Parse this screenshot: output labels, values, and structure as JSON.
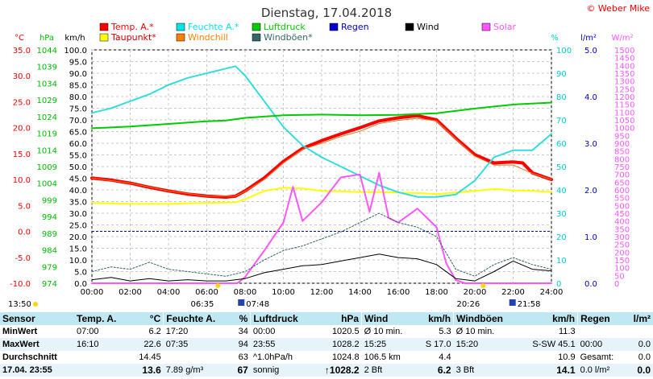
{
  "chart_data": {
    "type": "line",
    "title": "Dienstag, 17.04.2018",
    "copyright": "© Weber Mike",
    "x_ticks": [
      "00:00",
      "02:00",
      "04:00",
      "06:00",
      "08:00",
      "10:00",
      "12:00",
      "14:00",
      "16:00",
      "18:00",
      "20:00",
      "22:00",
      "24:00"
    ],
    "x_range_hours": [
      0,
      24
    ],
    "axes": {
      "temp": {
        "unit": "°C",
        "range": [
          -10,
          35
        ],
        "ticks": [
          "35.0",
          "30.0",
          "25.0",
          "20.0",
          "15.0",
          "10.0",
          "5.0",
          "0.0",
          "-5.0",
          "-10.0"
        ],
        "color": "#ff0000"
      },
      "pressure": {
        "unit": "hPa",
        "range": [
          974,
          1044
        ],
        "ticks": [
          "1044",
          "1039",
          "1034",
          "1029",
          "1024",
          "1019",
          "1014",
          "1009",
          "1004",
          "999",
          "994",
          "989",
          "984",
          "979",
          "974"
        ],
        "color": "#00bb00"
      },
      "wind": {
        "unit": "km/h",
        "range": [
          0,
          100
        ],
        "ticks": [
          "100.0",
          "95.0",
          "90.0",
          "85.0",
          "80.0",
          "75.0",
          "70.0",
          "65.0",
          "60.0",
          "55.0",
          "50.0",
          "45.0",
          "40.0",
          "35.0",
          "30.0",
          "25.0",
          "20.0",
          "15.0",
          "10.0",
          "5.0",
          "0.0"
        ],
        "color": "#000000"
      },
      "humidity": {
        "unit": "%",
        "range": [
          0,
          100
        ],
        "ticks": [
          "100",
          "90",
          "80",
          "70",
          "60",
          "50",
          "40",
          "30",
          "20",
          "10",
          "0"
        ],
        "color": "#00cccc"
      },
      "rain": {
        "unit": "l/m²",
        "range": [
          0,
          5
        ],
        "ticks": [
          "5.0",
          "4.0",
          "3.0",
          "2.0",
          "1.0",
          "0.0"
        ],
        "color": "#0000cc"
      },
      "solar": {
        "unit": "W/m²",
        "range": [
          0,
          1500
        ],
        "ticks": [
          "1500",
          "1450",
          "1400",
          "1350",
          "1300",
          "1250",
          "1200",
          "1150",
          "1100",
          "1050",
          "1000",
          "950",
          "900",
          "850",
          "800",
          "750",
          "700",
          "650",
          "600",
          "550",
          "500",
          "450",
          "400",
          "350",
          "300",
          "250",
          "200",
          "150",
          "100",
          "50",
          "0"
        ],
        "color": "#ff55ff"
      }
    },
    "legend": [
      {
        "label": "Temp. A.*",
        "color": "#ff0000"
      },
      {
        "label": "Feuchte A.*",
        "color": "#00e5e5"
      },
      {
        "label": "Luftdruck",
        "color": "#00cc00"
      },
      {
        "label": "Regen",
        "color": "#0000cc"
      },
      {
        "label": "Wind",
        "color": "#000000"
      },
      {
        "label": "Solar",
        "color": "#ff55ff"
      },
      {
        "label": "Taupunkt*",
        "color": "#ffff00"
      },
      {
        "label": "Windchill",
        "color": "#ff8000"
      },
      {
        "label": "Windböen*",
        "color": "#336666"
      }
    ],
    "series": [
      {
        "name": "Temp. A.*",
        "axis": "temp",
        "color": "#ff0000",
        "width": 4,
        "points": [
          [
            0,
            10.3
          ],
          [
            1,
            9.9
          ],
          [
            2,
            9.3
          ],
          [
            3,
            8.5
          ],
          [
            4,
            7.8
          ],
          [
            5,
            7.2
          ],
          [
            6,
            6.8
          ],
          [
            7,
            6.6
          ],
          [
            7.5,
            6.8
          ],
          [
            8,
            7.8
          ],
          [
            9,
            10.3
          ],
          [
            10,
            13.5
          ],
          [
            11,
            16.0
          ],
          [
            12,
            17.5
          ],
          [
            13,
            18.8
          ],
          [
            14,
            20.0
          ],
          [
            15,
            21.3
          ],
          [
            16,
            21.9
          ],
          [
            17,
            22.3
          ],
          [
            18,
            21.5
          ],
          [
            19,
            18.0
          ],
          [
            20,
            14.8
          ],
          [
            21,
            13.2
          ],
          [
            22,
            13.4
          ],
          [
            22.5,
            13.2
          ],
          [
            23,
            11.3
          ],
          [
            24,
            10.0
          ]
        ]
      },
      {
        "name": "Windchill",
        "axis": "temp",
        "color": "#e07820",
        "width": 1,
        "points": [
          [
            0,
            10.3
          ],
          [
            2,
            9.3
          ],
          [
            4,
            7.8
          ],
          [
            6,
            6.8
          ],
          [
            7.5,
            6.8
          ],
          [
            8,
            7.7
          ],
          [
            9,
            10.0
          ],
          [
            10,
            13.2
          ],
          [
            11,
            15.8
          ],
          [
            12,
            17.0
          ],
          [
            13,
            18.3
          ],
          [
            14,
            19.3
          ],
          [
            15,
            20.8
          ],
          [
            16,
            21.4
          ],
          [
            17,
            21.8
          ],
          [
            18,
            21.3
          ],
          [
            19,
            17.8
          ],
          [
            20,
            14.5
          ],
          [
            21,
            12.8
          ],
          [
            22,
            12.8
          ],
          [
            23,
            11.2
          ],
          [
            24,
            10.0
          ]
        ]
      },
      {
        "name": "Taupunkt*",
        "axis": "temp",
        "color": "#ffff00",
        "width": 2,
        "points": [
          [
            0,
            5.5
          ],
          [
            2,
            5.3
          ],
          [
            4,
            5.3
          ],
          [
            6,
            5.5
          ],
          [
            7.5,
            5.6
          ],
          [
            8,
            6.2
          ],
          [
            9,
            7.8
          ],
          [
            10,
            8.4
          ],
          [
            11,
            8.3
          ],
          [
            12,
            7.8
          ],
          [
            13,
            7.7
          ],
          [
            14,
            7.6
          ],
          [
            15,
            7.6
          ],
          [
            16,
            7.5
          ],
          [
            17,
            7.4
          ],
          [
            18,
            7.2
          ],
          [
            19,
            7.5
          ],
          [
            20,
            7.8
          ],
          [
            21,
            8.2
          ],
          [
            22,
            7.9
          ],
          [
            23,
            7.8
          ],
          [
            24,
            7.6
          ]
        ]
      },
      {
        "name": "Feuchte A.*",
        "axis": "humidity",
        "color": "#33dddd",
        "width": 2,
        "points": [
          [
            0,
            73
          ],
          [
            1,
            75
          ],
          [
            2,
            78
          ],
          [
            3,
            81
          ],
          [
            4,
            85
          ],
          [
            5,
            88
          ],
          [
            6,
            90
          ],
          [
            7,
            92
          ],
          [
            7.5,
            93
          ],
          [
            8,
            89
          ],
          [
            9,
            78
          ],
          [
            10,
            67
          ],
          [
            11,
            59
          ],
          [
            12,
            54
          ],
          [
            13,
            50
          ],
          [
            14,
            46
          ],
          [
            15,
            42
          ],
          [
            16,
            39
          ],
          [
            17,
            37
          ],
          [
            18,
            37
          ],
          [
            19,
            38
          ],
          [
            20,
            44
          ],
          [
            21,
            54
          ],
          [
            22,
            57
          ],
          [
            23,
            57
          ],
          [
            24,
            64
          ]
        ]
      },
      {
        "name": "Luftdruck",
        "axis": "pressure",
        "color": "#00cc00",
        "width": 2,
        "points": [
          [
            0,
            1020.5
          ],
          [
            2,
            1021.0
          ],
          [
            4,
            1021.8
          ],
          [
            6,
            1022.6
          ],
          [
            7,
            1022.8
          ],
          [
            8,
            1023.6
          ],
          [
            10,
            1024.4
          ],
          [
            12,
            1024.6
          ],
          [
            14,
            1024.4
          ],
          [
            16,
            1024.5
          ],
          [
            18,
            1025.0
          ],
          [
            20,
            1026.4
          ],
          [
            22,
            1027.6
          ],
          [
            24,
            1028.2
          ]
        ]
      },
      {
        "name": "Solar",
        "axis": "solar",
        "color": "#ff55ff",
        "width": 2,
        "points": [
          [
            0,
            0
          ],
          [
            7.6,
            0
          ],
          [
            8,
            40
          ],
          [
            9,
            210
          ],
          [
            10,
            390
          ],
          [
            10.5,
            620
          ],
          [
            11,
            400
          ],
          [
            12,
            520
          ],
          [
            13,
            680
          ],
          [
            14,
            700
          ],
          [
            14.5,
            460
          ],
          [
            15,
            710
          ],
          [
            15.5,
            420
          ],
          [
            16,
            390
          ],
          [
            17,
            480
          ],
          [
            18,
            360
          ],
          [
            18.5,
            130
          ],
          [
            19,
            20
          ],
          [
            19.5,
            0
          ],
          [
            24,
            0
          ]
        ]
      },
      {
        "name": "Wind",
        "axis": "wind",
        "color": "#000000",
        "width": 1,
        "points": [
          [
            0,
            1.5
          ],
          [
            1,
            2.5
          ],
          [
            2,
            1.0
          ],
          [
            3,
            2.0
          ],
          [
            4,
            1.0
          ],
          [
            5,
            1.5
          ],
          [
            6,
            1.0
          ],
          [
            7,
            1.0
          ],
          [
            8,
            2.0
          ],
          [
            9,
            4.5
          ],
          [
            10,
            6.0
          ],
          [
            11,
            7.5
          ],
          [
            12,
            8.0
          ],
          [
            13,
            9.5
          ],
          [
            14,
            11.0
          ],
          [
            15,
            12.5
          ],
          [
            16,
            11.0
          ],
          [
            17,
            10.5
          ],
          [
            18,
            8.0
          ],
          [
            19,
            2.0
          ],
          [
            20,
            1.0
          ],
          [
            21,
            5.0
          ],
          [
            22,
            9.5
          ],
          [
            23,
            6.0
          ],
          [
            24,
            5.3
          ]
        ]
      },
      {
        "name": "Windböen*",
        "axis": "wind",
        "color": "#336666",
        "width": 1,
        "dash": "2,2",
        "points": [
          [
            0,
            5.0
          ],
          [
            1,
            7.0
          ],
          [
            2,
            6.0
          ],
          [
            3,
            9.0
          ],
          [
            4,
            6.0
          ],
          [
            5,
            5.0
          ],
          [
            6,
            4.0
          ],
          [
            7,
            3.0
          ],
          [
            8,
            5.0
          ],
          [
            9,
            10.0
          ],
          [
            10,
            14.0
          ],
          [
            11,
            16.0
          ],
          [
            12,
            19.0
          ],
          [
            13,
            22.0
          ],
          [
            14,
            26.0
          ],
          [
            15,
            30.0
          ],
          [
            16,
            26.0
          ],
          [
            17,
            24.0
          ],
          [
            18,
            20.0
          ],
          [
            19,
            6.0
          ],
          [
            20,
            3.0
          ],
          [
            21,
            8.0
          ],
          [
            22,
            11.0
          ],
          [
            23,
            8.0
          ],
          [
            24,
            6.0
          ]
        ]
      }
    ],
    "reference_line": {
      "axis": "temp",
      "value": 0,
      "color": "#0000cc"
    },
    "markers": {
      "left_time": "13:50",
      "sunrise": "06:35",
      "sunrise_civil": "07:48",
      "sunset": "20:26",
      "sunset_civil": "21:58"
    }
  },
  "stats": {
    "headers": [
      "Sensor",
      "Temp. A.",
      "°C",
      "Feuchte A.",
      "%",
      "Luftdruck",
      "hPa",
      "Wind",
      "km/h",
      "Windböen",
      "km/h",
      "Regen",
      "l/m²"
    ],
    "rows": [
      [
        "MinWert",
        "07:00",
        "6.2",
        "17:20",
        "34",
        "00:00",
        "1020.5",
        "Ø 10 min.",
        "5.3",
        "Ø 10 min.",
        "11.3",
        "",
        ""
      ],
      [
        "MaxWert",
        "16:10",
        "22.6",
        "07:35",
        "94",
        "23:55",
        "1028.2",
        "15:25",
        "S 17.0",
        "15:20",
        "S-SW 45.1",
        "00:00",
        "0.0"
      ],
      [
        "Durchschnitt",
        "",
        "14.45",
        "",
        "63",
        "^1.0hPa/h",
        "1024.8",
        "106.5 km",
        "4.4",
        "",
        "10.9",
        "Gesamt:",
        "0.0"
      ],
      [
        "17.04. 23:55",
        "",
        "13.6",
        "7.89 g/m³",
        "67",
        "sonnig",
        "↑1028.2",
        "2 Bft",
        "6.2",
        "3 Bft",
        "14.1",
        "0.0 l/m²",
        "0.0"
      ]
    ]
  }
}
